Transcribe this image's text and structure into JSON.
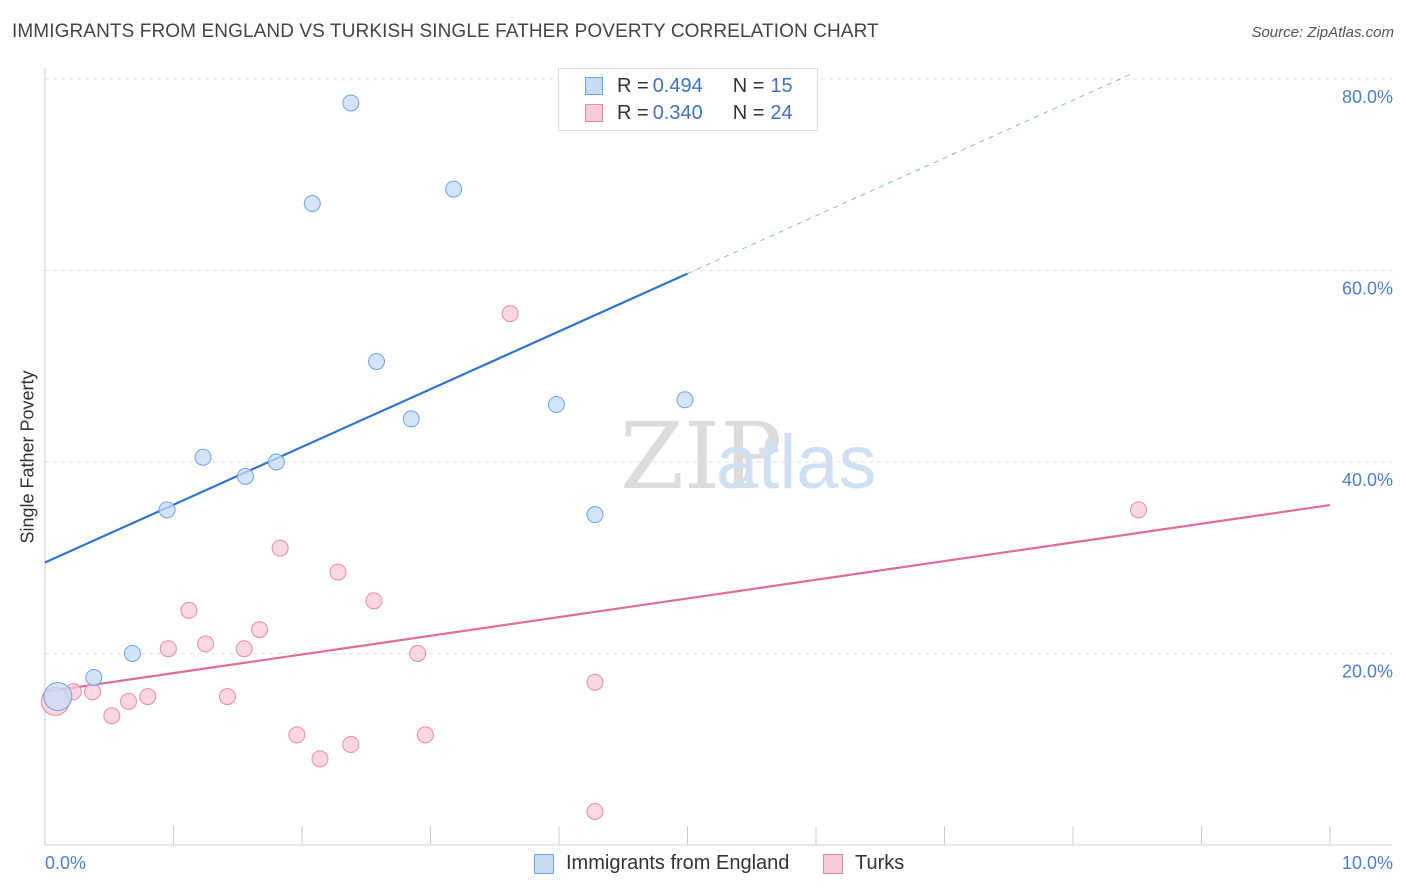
{
  "title": "IMMIGRANTS FROM ENGLAND VS TURKISH SINGLE FATHER POVERTY CORRELATION CHART",
  "source": "Source: ZipAtlas.com",
  "watermark": {
    "zip": "ZIP",
    "atlas": "atlas"
  },
  "legend": {
    "rows": [
      {
        "r_label": "R =",
        "r_value": "0.494",
        "n_label": "N =",
        "n_value": "15"
      },
      {
        "r_label": "R =",
        "r_value": "0.340",
        "n_label": "N =",
        "n_value": "24"
      }
    ]
  },
  "bottom_legend": {
    "series1": "Immigrants from England",
    "series2": "Turks"
  },
  "chart_data": {
    "type": "scatter",
    "xlabel": "",
    "ylabel": "Single Father Poverty",
    "xlim": [
      0,
      10
    ],
    "ylim": [
      0,
      80
    ],
    "x_tick_labels": [
      {
        "value": 0,
        "label": "0.0%"
      },
      {
        "value": 10,
        "label": "10.0%"
      }
    ],
    "y_tick_labels": [
      {
        "value": 20,
        "label": "20.0%"
      },
      {
        "value": 40,
        "label": "40.0%"
      },
      {
        "value": 60,
        "label": "60.0%"
      },
      {
        "value": 80,
        "label": "80.0%"
      }
    ],
    "grid": true,
    "series": [
      {
        "name": "Immigrants from England",
        "color": "#6fa3e6",
        "fill": "#c5dbf6",
        "line_color": "#2f74d0",
        "points": [
          [
            0.1,
            15.5,
            "large"
          ],
          [
            0.38,
            17.5
          ],
          [
            0.68,
            20.0
          ],
          [
            0.95,
            35.0
          ],
          [
            1.23,
            40.5
          ],
          [
            1.56,
            38.5
          ],
          [
            1.8,
            40.0
          ],
          [
            2.08,
            67.0
          ],
          [
            2.38,
            77.5
          ],
          [
            2.58,
            50.5
          ],
          [
            2.85,
            44.5
          ],
          [
            3.18,
            68.5
          ],
          [
            3.98,
            46.0
          ],
          [
            4.28,
            34.5
          ],
          [
            4.98,
            46.5
          ]
        ],
        "trend": {
          "x_start": 0,
          "y_start": 29.5,
          "x_solid_end": 5.0,
          "x_end": 8.45,
          "y_end": 80.5
        }
      },
      {
        "name": "Turks",
        "color": "#e98aa8",
        "fill": "#f8c9d8",
        "line_color": "#e06d95",
        "points": [
          [
            0.08,
            15.0,
            "large"
          ],
          [
            0.22,
            16.0
          ],
          [
            0.37,
            16.0
          ],
          [
            0.52,
            13.5
          ],
          [
            0.65,
            15.0
          ],
          [
            0.8,
            15.5
          ],
          [
            0.96,
            20.5
          ],
          [
            1.12,
            24.5
          ],
          [
            1.25,
            21.0
          ],
          [
            1.42,
            15.5
          ],
          [
            1.55,
            20.5
          ],
          [
            1.67,
            22.5
          ],
          [
            1.83,
            31.0
          ],
          [
            1.96,
            11.5
          ],
          [
            2.14,
            9.0
          ],
          [
            2.28,
            28.5
          ],
          [
            2.38,
            10.5
          ],
          [
            2.56,
            25.5
          ],
          [
            2.9,
            20.0
          ],
          [
            2.96,
            11.5
          ],
          [
            3.62,
            55.5
          ],
          [
            4.28,
            3.5
          ],
          [
            4.28,
            17.0
          ],
          [
            8.51,
            35.0
          ]
        ],
        "trend": {
          "x_start": 0,
          "y_start": 16.0,
          "x_end": 10,
          "y_end": 35.5
        }
      }
    ]
  }
}
